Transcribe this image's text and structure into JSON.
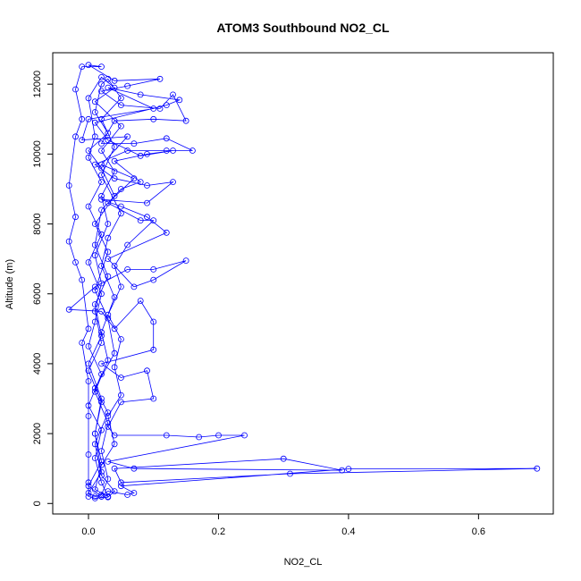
{
  "chart_data": {
    "type": "line",
    "title": "ATOM3 Southbound NO2_CL",
    "xlabel": "NO2_CL",
    "ylabel": "Altitude (m)",
    "xlim": [
      -0.055,
      0.715
    ],
    "ylim": [
      -300,
      12900
    ],
    "xticks": [
      0.0,
      0.2,
      0.4,
      0.6
    ],
    "xtick_labels": [
      "0.0",
      "0.2",
      "0.4",
      "0.6"
    ],
    "yticks": [
      0,
      2000,
      4000,
      6000,
      8000,
      10000,
      12000
    ],
    "ytick_labels": [
      "0",
      "2000",
      "4000",
      "6000",
      "8000",
      "10000",
      "12000"
    ],
    "grid": false,
    "series": [
      {
        "color": "#0000ff",
        "marker": "open-circle",
        "points": [
          [
            0.02,
            200
          ],
          [
            0.03,
            350
          ],
          [
            0.06,
            250
          ],
          [
            0.07,
            300
          ],
          [
            0.05,
            500
          ],
          [
            0.4,
            990
          ],
          [
            0.69,
            1000
          ],
          [
            0.31,
            850
          ],
          [
            0.05,
            600
          ],
          [
            0.04,
            1000
          ],
          [
            0.3,
            1280
          ],
          [
            0.39,
            950
          ],
          [
            0.07,
            1000
          ],
          [
            0.03,
            1200
          ],
          [
            0.24,
            1950
          ],
          [
            0.2,
            1950
          ],
          [
            0.17,
            1900
          ],
          [
            0.12,
            1950
          ],
          [
            0.04,
            1950
          ],
          [
            0.03,
            2200
          ],
          [
            0.05,
            2900
          ],
          [
            0.1,
            3000
          ],
          [
            0.09,
            3800
          ],
          [
            0.05,
            3600
          ],
          [
            0.02,
            4000
          ],
          [
            0.1,
            4400
          ],
          [
            0.1,
            5200
          ],
          [
            0.08,
            5800
          ],
          [
            0.04,
            5000
          ],
          [
            0.02,
            5500
          ],
          [
            -0.03,
            5550
          ],
          [
            0.01,
            6200
          ],
          [
            0.06,
            6700
          ],
          [
            0.1,
            6700
          ],
          [
            0.15,
            6950
          ],
          [
            0.1,
            6400
          ],
          [
            0.07,
            6200
          ],
          [
            0.03,
            7000
          ],
          [
            0.12,
            7750
          ],
          [
            0.09,
            8200
          ],
          [
            0.05,
            8500
          ],
          [
            0.02,
            8700
          ],
          [
            0.09,
            8600
          ],
          [
            0.13,
            9200
          ],
          [
            0.09,
            9100
          ],
          [
            0.04,
            9300
          ],
          [
            0.01,
            9700
          ],
          [
            0.06,
            10100
          ],
          [
            0.12,
            10100
          ],
          [
            0.16,
            10100
          ],
          [
            0.12,
            10450
          ],
          [
            0.07,
            10300
          ],
          [
            0.02,
            10300
          ],
          [
            0.04,
            10950
          ],
          [
            0.1,
            11000
          ],
          [
            0.15,
            10950
          ],
          [
            0.13,
            11700
          ],
          [
            0.11,
            11300
          ],
          [
            0.05,
            11400
          ],
          [
            0.02,
            11800
          ],
          [
            0.06,
            11950
          ],
          [
            0.11,
            12150
          ],
          [
            0.04,
            12100
          ],
          [
            0.0,
            12550
          ],
          [
            0.02,
            12500
          ],
          [
            -0.01,
            12500
          ],
          [
            -0.02,
            11850
          ],
          [
            -0.01,
            11000
          ],
          [
            -0.02,
            10500
          ],
          [
            -0.03,
            9100
          ],
          [
            -0.02,
            8200
          ],
          [
            -0.03,
            7500
          ],
          [
            -0.02,
            6900
          ],
          [
            -0.01,
            6400
          ],
          [
            0.0,
            5000
          ],
          [
            -0.01,
            4600
          ],
          [
            0.0,
            3500
          ],
          [
            0.0,
            2500
          ],
          [
            0.0,
            1400
          ],
          [
            0.0,
            600
          ],
          [
            0.0,
            200
          ],
          [
            0.01,
            150
          ],
          [
            0.03,
            180
          ],
          [
            0.04,
            350
          ],
          [
            0.02,
            800
          ],
          [
            0.01,
            1700
          ],
          [
            0.03,
            2600
          ],
          [
            0.01,
            3300
          ],
          [
            0.04,
            4300
          ],
          [
            0.03,
            5300
          ],
          [
            0.01,
            6100
          ],
          [
            0.03,
            7200
          ],
          [
            0.01,
            8000
          ],
          [
            0.04,
            8800
          ],
          [
            0.02,
            9600
          ],
          [
            0.0,
            10100
          ],
          [
            0.03,
            10600
          ],
          [
            0.01,
            11200
          ],
          [
            0.02,
            12000
          ],
          [
            0.03,
            12150
          ],
          [
            0.05,
            11600
          ],
          [
            0.02,
            11000
          ],
          [
            0.04,
            10200
          ],
          [
            0.02,
            9400
          ],
          [
            0.05,
            8300
          ],
          [
            0.03,
            7600
          ],
          [
            0.02,
            6800
          ],
          [
            0.04,
            5900
          ],
          [
            0.02,
            4900
          ],
          [
            0.03,
            4100
          ],
          [
            0.01,
            3200
          ],
          [
            0.03,
            2300
          ],
          [
            0.02,
            1500
          ],
          [
            0.03,
            700
          ],
          [
            0.02,
            250
          ],
          [
            0.01,
            200
          ],
          [
            0.0,
            300
          ],
          [
            0.02,
            900
          ],
          [
            0.01,
            2000
          ],
          [
            0.02,
            3000
          ],
          [
            0.0,
            4000
          ],
          [
            0.02,
            4800
          ],
          [
            0.01,
            5700
          ],
          [
            0.03,
            6500
          ],
          [
            0.01,
            7400
          ],
          [
            0.02,
            8400
          ],
          [
            0.05,
            9000
          ],
          [
            0.08,
            9200
          ],
          [
            0.04,
            9800
          ],
          [
            0.09,
            10000
          ],
          [
            0.13,
            10100
          ],
          [
            0.08,
            9950
          ],
          [
            0.03,
            10400
          ],
          [
            0.01,
            10900
          ],
          [
            0.12,
            11400
          ],
          [
            0.14,
            11550
          ],
          [
            0.08,
            11700
          ],
          [
            0.03,
            11900
          ],
          [
            0.1,
            11300
          ],
          [
            0.0,
            11000
          ],
          [
            -0.01,
            10400
          ],
          [
            0.06,
            10500
          ],
          [
            0.02,
            9700
          ],
          [
            0.07,
            9300
          ],
          [
            0.03,
            8600
          ],
          [
            0.08,
            8100
          ],
          [
            0.1,
            8100
          ],
          [
            0.06,
            7400
          ],
          [
            0.04,
            6800
          ],
          [
            0.05,
            6200
          ],
          [
            0.03,
            5400
          ],
          [
            0.05,
            4700
          ],
          [
            0.04,
            3900
          ],
          [
            0.05,
            3100
          ],
          [
            0.03,
            2500
          ],
          [
            0.04,
            1700
          ],
          [
            0.02,
            1100
          ],
          [
            0.01,
            400
          ],
          [
            0.03,
            200
          ],
          [
            0.02,
            600
          ],
          [
            0.01,
            1300
          ],
          [
            0.02,
            2100
          ],
          [
            0.0,
            2800
          ],
          [
            0.02,
            3700
          ],
          [
            0.0,
            4500
          ],
          [
            0.01,
            5200
          ],
          [
            0.02,
            6000
          ],
          [
            0.0,
            6900
          ],
          [
            0.02,
            7700
          ],
          [
            0.0,
            8500
          ],
          [
            0.02,
            9200
          ],
          [
            0.0,
            9900
          ],
          [
            0.01,
            10500
          ],
          [
            0.0,
            11600
          ],
          [
            0.02,
            12200
          ],
          [
            0.04,
            11900
          ],
          [
            0.01,
            11500
          ],
          [
            0.05,
            10800
          ],
          [
            0.02,
            10100
          ],
          [
            0.04,
            9500
          ],
          [
            0.02,
            8800
          ],
          [
            0.03,
            8000
          ],
          [
            0.01,
            7100
          ],
          [
            0.02,
            6300
          ],
          [
            0.01,
            5500
          ],
          [
            0.02,
            4600
          ],
          [
            0.0,
            3800
          ],
          [
            0.02,
            2900
          ],
          [
            0.01,
            2000
          ],
          [
            0.02,
            1200
          ],
          [
            0.0,
            500
          ],
          [
            0.02,
            200
          ]
        ]
      }
    ]
  }
}
